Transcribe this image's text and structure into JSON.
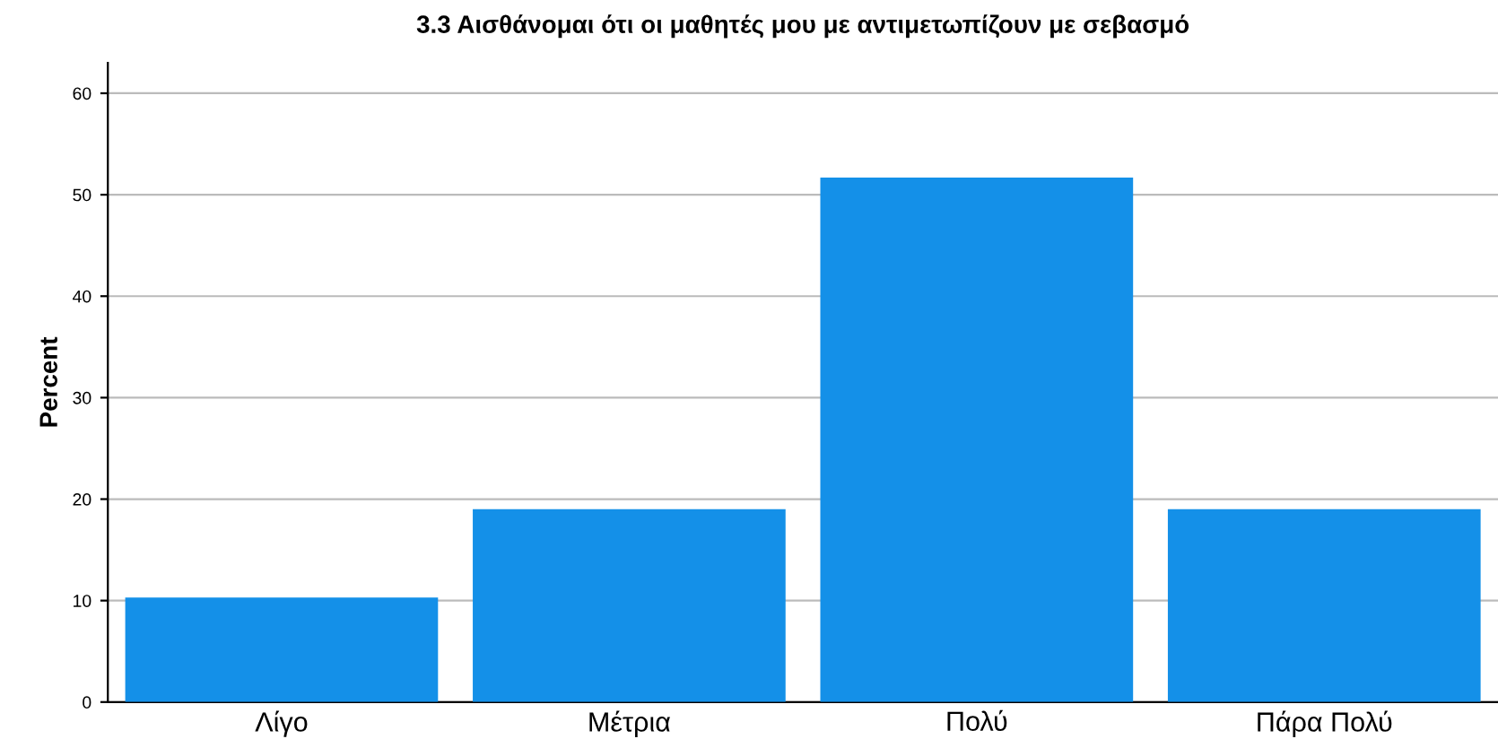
{
  "chart_data": {
    "type": "bar",
    "title": "3.3 Αισθάνομαι ότι οι μαθητές μου με αντιμετωπίζουν με σεβασμό",
    "ylabel": "Percent",
    "categories": [
      "Λίγο",
      "Μέτρια",
      "Πολύ",
      "Πάρα Πολύ"
    ],
    "values": [
      10.3,
      19.0,
      51.7,
      19.0
    ],
    "color": "#1490e8",
    "ylim": [
      0,
      63
    ],
    "yticks": [
      0,
      10,
      20,
      30,
      40,
      50,
      60
    ],
    "grid": "y"
  }
}
